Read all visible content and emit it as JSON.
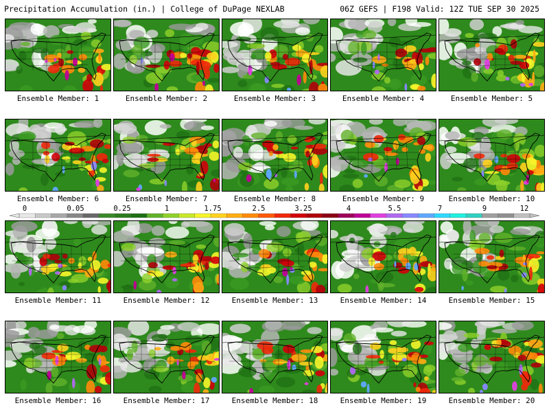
{
  "header": {
    "left": "Precipitation Accumulation (in.) | College of DuPage NEXLAB",
    "right": "06Z GEFS | F198 Valid: 12Z TUE SEP 30 2025"
  },
  "colorbar": {
    "labels": [
      "0",
      "0.05",
      "0.25",
      "1",
      "1.75",
      "2.5",
      "3.25",
      "4",
      "5.5",
      "7",
      "9",
      "12"
    ],
    "colors": [
      "#e8e8e8",
      "#c8c8c8",
      "#a8a8a8",
      "#888888",
      "#686868",
      "#3a8a2a",
      "#2c7d1e",
      "#1f7014",
      "#62b22a",
      "#8fd12a",
      "#c8e82a",
      "#f5f52a",
      "#ffd21e",
      "#ffad14",
      "#ff8a0a",
      "#ff5a0a",
      "#f0280a",
      "#d2000a",
      "#b0000a",
      "#8c0014",
      "#a0005a",
      "#c00096",
      "#e040e0",
      "#b068f0",
      "#8888ff",
      "#60a8ff",
      "#30d8ff",
      "#20f0e0",
      "#30d0c0",
      "#a0a0a0",
      "#909090",
      "#c0c0c0"
    ]
  },
  "panels": [
    {
      "caption": "Ensemble Member: 1"
    },
    {
      "caption": "Ensemble Member: 2"
    },
    {
      "caption": "Ensemble Member: 3"
    },
    {
      "caption": "Ensemble Member: 4"
    },
    {
      "caption": "Ensemble Member: 5"
    },
    {
      "caption": "Ensemble Member: 6"
    },
    {
      "caption": "Ensemble Member: 7"
    },
    {
      "caption": "Ensemble Member: 8"
    },
    {
      "caption": "Ensemble Member: 9"
    },
    {
      "caption": "Ensemble Member: 10"
    },
    {
      "caption": "Ensemble Member: 11"
    },
    {
      "caption": "Ensemble Member: 12"
    },
    {
      "caption": "Ensemble Member: 13"
    },
    {
      "caption": "Ensemble Member: 14"
    },
    {
      "caption": "Ensemble Member: 15"
    },
    {
      "caption": "Ensemble Member: 16"
    },
    {
      "caption": "Ensemble Member: 17"
    },
    {
      "caption": "Ensemble Member: 18"
    },
    {
      "caption": "Ensemble Member: 19"
    },
    {
      "caption": "Ensemble Member: 20"
    }
  ]
}
